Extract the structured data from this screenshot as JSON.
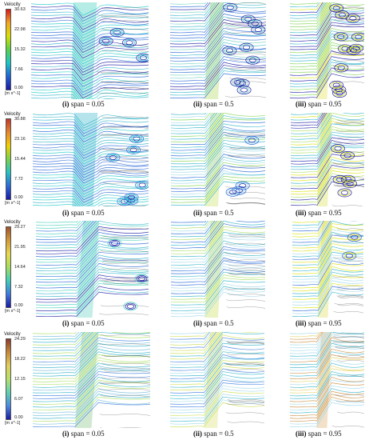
{
  "rows": [
    {
      "legend": {
        "title": "Velocity",
        "ticks": [
          "30.63",
          "22.98",
          "15.32",
          "7.66",
          "0.00"
        ],
        "unit": "[m s^-1]"
      },
      "captions": [
        {
          "num": "(i)",
          "text": " span = 0.05"
        },
        {
          "num": "(ii)",
          "text": " span = 0.5"
        },
        {
          "num": "(iii)",
          "text": " span = 0.95"
        }
      ]
    },
    {
      "legend": {
        "title": "Velocity",
        "ticks": [
          "30.88",
          "23.16",
          "15.44",
          "7.72",
          "0.00"
        ],
        "unit": "[m s^-1]"
      },
      "captions": [
        {
          "num": "(i)",
          "text": " span = 0.05"
        },
        {
          "num": "(ii)",
          "text": " span = 0.5"
        },
        {
          "num": "(iii)",
          "text": " span = 0.95"
        }
      ]
    },
    {
      "legend": {
        "title": "Velocity",
        "ticks": [
          "29.27",
          "21.95",
          "14.64",
          "7.32",
          "0.00"
        ],
        "unit": "[m s^-1]"
      },
      "captions": [
        {
          "num": "(i)",
          "text": " span = 0.05"
        },
        {
          "num": "(ii)",
          "text": " span = 0.5"
        },
        {
          "num": "(iii)",
          "text": " span = 0.95"
        }
      ]
    },
    {
      "legend": {
        "title": "Velocity",
        "ticks": [
          "24.29",
          "18.22",
          "12.15",
          "6.07",
          "0.00"
        ],
        "unit": "[m s^-1]"
      },
      "captions": [
        {
          "num": "(i)",
          "text": " span = 0.05"
        },
        {
          "num": "(ii)",
          "text": " span = 0.5"
        },
        {
          "num": "(iii)",
          "text": " span = 0.95"
        }
      ]
    }
  ]
}
